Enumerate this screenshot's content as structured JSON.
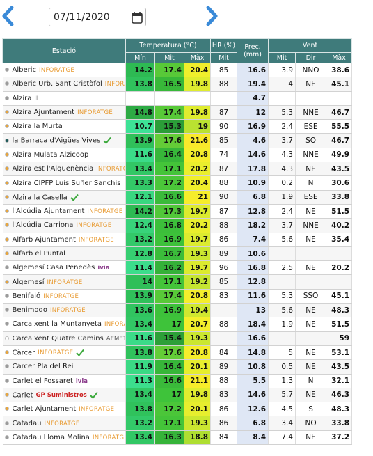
{
  "header": {
    "date": "07/11/2020"
  },
  "table": {
    "groups": [
      "Estació",
      "Temperatura (°C)",
      "HR (%)",
      "Prec. (mm)",
      "Vent"
    ],
    "subheaders": [
      "Mín",
      "Mit",
      "Màx",
      "Mit",
      "Mit",
      "Dir",
      "Màx"
    ],
    "rows": [
      {
        "dot": "#9a9a9a",
        "name": "Alberic",
        "tag": "INFORATGE",
        "values": [
          14.2,
          17.4,
          20.4,
          85,
          16.6,
          3.9,
          "NNO",
          38.6
        ]
      },
      {
        "dot": "#9a9a9a",
        "name": "Alberic Urb. Sant Cristòfol",
        "tag": "INFORATGE",
        "values": [
          13.8,
          16.5,
          19.8,
          88,
          19.4,
          4.0,
          "NE",
          45.1
        ]
      },
      {
        "dot": "#9a9a9a",
        "name": "Alzira",
        "tag": "II",
        "values": [
          null,
          null,
          null,
          null,
          4.7,
          null,
          null,
          null
        ]
      },
      {
        "dot": "#e8a53c",
        "name": "Alzira Ajuntament",
        "tag": "INFORATGE",
        "values": [
          14.8,
          17.4,
          19.8,
          87,
          12.0,
          5.3,
          "NNE",
          46.7
        ]
      },
      {
        "dot": "#e8a53c",
        "name": "Alzira la Murta",
        "tag": null,
        "values": [
          10.7,
          15.3,
          19.0,
          90,
          16.9,
          2.4,
          "ESE",
          55.5
        ]
      },
      {
        "dot": "#1f5a5a",
        "name": "la Barraca d'Aigües Vives",
        "tag": null,
        "check": true,
        "values": [
          13.9,
          17.6,
          21.6,
          85,
          4.6,
          3.7,
          "SO",
          46.7
        ]
      },
      {
        "dot": "#e8a53c",
        "name": "Alzira Mulata Alzicoop",
        "tag": null,
        "values": [
          11.6,
          16.4,
          20.8,
          74,
          14.6,
          4.3,
          "NNE",
          49.9
        ]
      },
      {
        "dot": "#e8a53c",
        "name": "Alzira est l'Alquenència",
        "tag": "INFORATGE",
        "values": [
          13.4,
          17.1,
          20.2,
          87,
          17.8,
          4.3,
          "NE",
          43.5
        ]
      },
      {
        "dot": "#e8a53c",
        "name": "Alzira CIPFP Luis Suñer Sanchis",
        "tag": null,
        "values": [
          13.3,
          17.2,
          20.4,
          88,
          10.9,
          0.2,
          "N",
          30.6
        ]
      },
      {
        "dot": "#e8a53c",
        "name": "Alzira la Casella",
        "tag": null,
        "check": true,
        "values": [
          12.1,
          16.6,
          21.0,
          90,
          6.8,
          1.9,
          "ESE",
          33.8
        ]
      },
      {
        "dot": "#e8a53c",
        "name": "l'Alcúdia Ajuntament",
        "tag": "INFORATGE",
        "values": [
          14.2,
          17.3,
          19.7,
          87,
          12.8,
          2.4,
          "NE",
          51.5
        ]
      },
      {
        "dot": "#e8a53c",
        "name": "l'Alcúdia Carriona",
        "tag": "INFORATGE",
        "values": [
          12.4,
          16.8,
          20.2,
          88,
          18.2,
          3.7,
          "NNE",
          40.2
        ]
      },
      {
        "dot": "#e8a53c",
        "name": "Alfarb Ajuntament",
        "tag": "INFORATGE",
        "values": [
          13.2,
          16.9,
          19.7,
          86,
          7.4,
          5.6,
          "NE",
          35.4
        ]
      },
      {
        "dot": "#e8a53c",
        "name": "Alfarb el Puntal",
        "tag": null,
        "values": [
          12.8,
          16.7,
          19.3,
          89,
          10.6,
          null,
          null,
          null
        ]
      },
      {
        "dot": "#9a9a9a",
        "name": "Algemesí Casa Penedès",
        "tag": "ivia",
        "values": [
          11.4,
          16.2,
          19.7,
          96,
          16.8,
          2.5,
          "NE",
          20.2
        ]
      },
      {
        "dot": "#e8a53c",
        "name": "Algemesí",
        "tag": "INFORATGE",
        "values": [
          14.0,
          17.1,
          19.2,
          85,
          12.8,
          null,
          null,
          null
        ]
      },
      {
        "dot": "#9a9a9a",
        "name": "Benifaió",
        "tag": "INFORATGE",
        "values": [
          13.9,
          17.4,
          20.8,
          83,
          11.6,
          5.3,
          "SSO",
          45.1
        ]
      },
      {
        "dot": "#9a9a9a",
        "name": "Benimodo",
        "tag": "INFORATGE",
        "values": [
          13.6,
          16.9,
          19.4,
          null,
          13.0,
          5.6,
          "NE",
          48.3
        ]
      },
      {
        "dot": "#9a9a9a",
        "name": "Carcaixent la Muntanyeta",
        "tag": "INFORATGE",
        "values": [
          13.4,
          17.0,
          20.7,
          88,
          18.4,
          1.9,
          "NE",
          51.5
        ]
      },
      {
        "dot": "#ffffff",
        "name": "Carcaixent Quatre Camins",
        "tag": "AEMET",
        "values": [
          11.6,
          15.4,
          19.3,
          null,
          16.6,
          null,
          null,
          59.0
        ]
      },
      {
        "dot": "#e8a53c",
        "name": "Càrcer",
        "tag": "INFORATGE",
        "check": true,
        "values": [
          13.8,
          17.6,
          20.8,
          84,
          14.8,
          5.0,
          "NE",
          53.1
        ]
      },
      {
        "dot": "#9a9a9a",
        "name": "Càrcer Pla del Rei",
        "tag": null,
        "values": [
          11.9,
          16.4,
          20.1,
          89,
          10.8,
          0.5,
          "NE",
          43.5
        ]
      },
      {
        "dot": "#9a9a9a",
        "name": "Carlet el Fossaret",
        "tag": "ivia",
        "values": [
          11.3,
          16.6,
          21.1,
          88,
          5.5,
          1.3,
          "N",
          32.1
        ]
      },
      {
        "dot": "#e8a53c",
        "name": "Carlet",
        "tag": "GP Suministros",
        "check": true,
        "values": [
          13.4,
          17.0,
          19.8,
          83,
          14.6,
          5.7,
          "NE",
          46.3
        ]
      },
      {
        "dot": "#e8a53c",
        "name": "Carlet Ajuntament",
        "tag": "INFORATGE",
        "values": [
          13.8,
          17.2,
          20.1,
          86,
          12.6,
          4.5,
          "S",
          48.3
        ]
      },
      {
        "dot": "#9a9a9a",
        "name": "Catadau",
        "tag": "INFORATGE",
        "values": [
          13.2,
          17.1,
          19.3,
          86,
          6.8,
          3.4,
          "NO",
          33.8
        ]
      },
      {
        "dot": "#9a9a9a",
        "name": "Catadau Lloma Molina",
        "tag": "INFORATGE",
        "values": [
          13.4,
          16.3,
          18.8,
          84,
          8.4,
          7.4,
          "NE",
          37.2
        ]
      }
    ]
  }
}
